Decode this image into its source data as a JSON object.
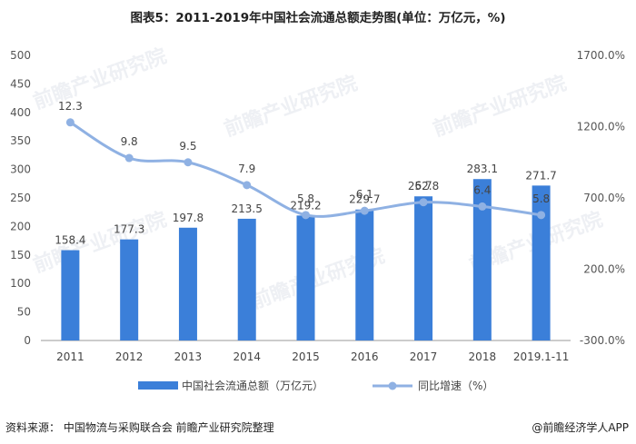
{
  "title": "图表5：2011-2019年中国社会流通总额走势图(单位：万亿元，%)",
  "source": "资料来源： 中国物流与采购联合会 前瞻产业研究院整理",
  "brand": "@前瞻经济学人APP",
  "watermark": "前瞻产业研究院",
  "colors": {
    "bar": "#3b7fd9",
    "line": "#8fb1e3"
  },
  "chart_data": {
    "type": "bar+line",
    "categories": [
      "2011",
      "2012",
      "2013",
      "2014",
      "2015",
      "2016",
      "2017",
      "2018",
      "2019.1-11"
    ],
    "series": [
      {
        "name": "中国社会流通总额（万亿元）",
        "type": "bar",
        "axis": "left",
        "values": [
          158.4,
          177.3,
          197.8,
          213.5,
          219.2,
          229.7,
          252.8,
          283.1,
          271.7
        ]
      },
      {
        "name": "同比增速（%）",
        "type": "line",
        "axis": "right",
        "values": [
          12.3,
          9.8,
          9.5,
          7.9,
          5.8,
          6.1,
          6.7,
          6.4,
          5.8
        ],
        "labels": [
          "12.3",
          "9.8",
          "9.5",
          "7.9",
          "5.8",
          "6.1",
          "6.7",
          "6.4",
          "5.8"
        ]
      }
    ],
    "left_axis": {
      "ylim": [
        0,
        500
      ],
      "ticks": [
        "0",
        "50",
        "100",
        "150",
        "200",
        "250",
        "300",
        "350",
        "400",
        "450",
        "500"
      ]
    },
    "right_axis": {
      "ylim": [
        -300,
        1700
      ],
      "ticks": [
        "-300.0%",
        "200.0%",
        "700.0%",
        "1200.0%",
        "1700.0%"
      ]
    },
    "legend_position": "bottom",
    "grid": false
  }
}
